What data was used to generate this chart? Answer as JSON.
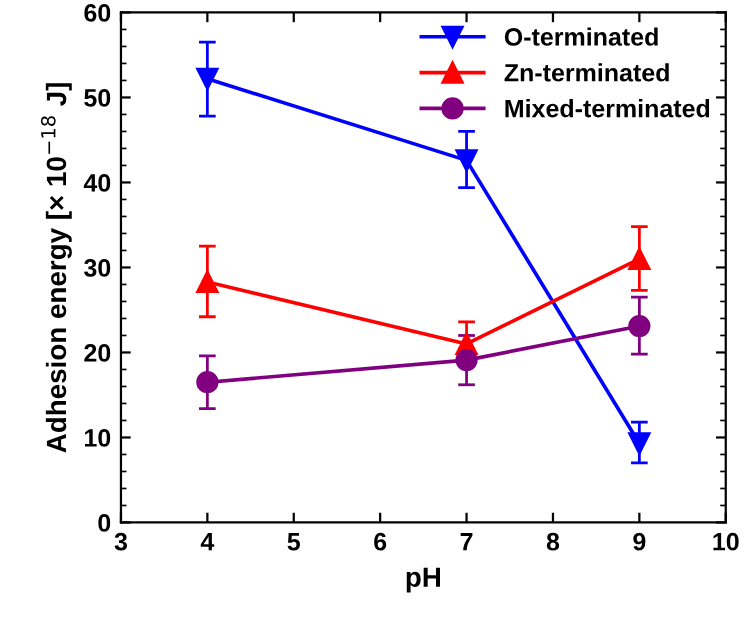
{
  "chart_data": {
    "type": "line",
    "xlabel": "pH",
    "ylabel": "Adhesion energy [× 10$^{−18}$ J]",
    "x": [
      4,
      7,
      9
    ],
    "series": [
      {
        "name": "O-terminated",
        "color": "#0000ff",
        "marker": "triangle_down",
        "values": [
          52.2,
          42.6,
          9.3
        ],
        "errors": [
          [
            47.8,
            56.5
          ],
          [
            39.4,
            46.0
          ],
          [
            7.0,
            11.8
          ]
        ]
      },
      {
        "name": "Zn-terminated",
        "color": "#ff0000",
        "marker": "triangle",
        "values": [
          28.3,
          21.0,
          31.0
        ],
        "errors": [
          [
            24.2,
            32.5
          ],
          [
            18.6,
            23.6
          ],
          [
            27.3,
            34.8
          ]
        ]
      },
      {
        "name": "Mixed-terminated",
        "color": "#800080",
        "marker": "circle",
        "values": [
          16.5,
          19.1,
          23.1
        ],
        "errors": [
          [
            13.4,
            19.6
          ],
          [
            16.2,
            22.0
          ],
          [
            19.8,
            26.5
          ]
        ]
      }
    ],
    "xlim": [
      3,
      10
    ],
    "xticks": [
      3,
      4,
      5,
      6,
      7,
      8,
      9,
      10
    ],
    "ylim": [
      0,
      60
    ],
    "yticks": [
      0,
      10,
      20,
      30,
      40,
      50,
      60
    ],
    "grid": false,
    "legend": "top right",
    "line_style": "solid"
  }
}
